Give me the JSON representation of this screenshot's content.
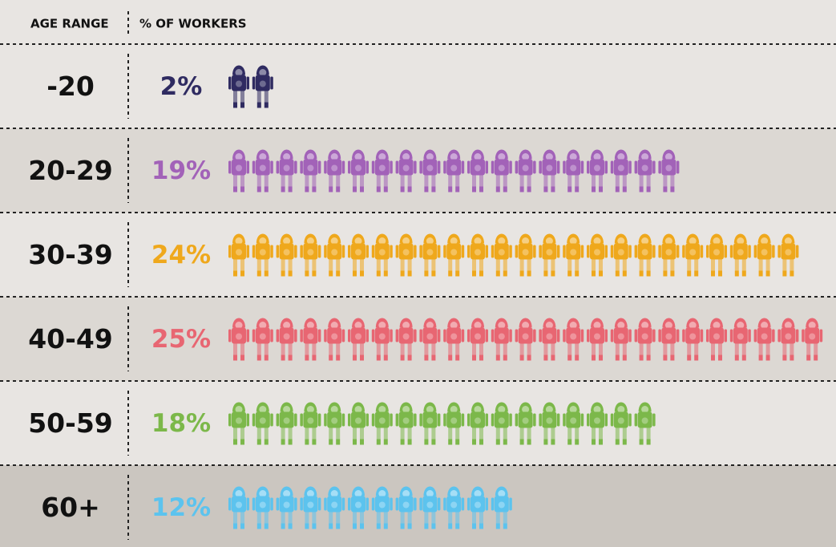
{
  "chart_data": {
    "type": "pictograph",
    "headers": [
      "AGE RANGE",
      "% OF WORKERS"
    ],
    "categories": [
      "-20",
      "20-29",
      "30-39",
      "40-49",
      "50-59",
      "60+"
    ],
    "values": [
      2,
      19,
      24,
      25,
      18,
      12
    ],
    "value_labels": [
      "2%",
      "19%",
      "24%",
      "25%",
      "18%",
      "12%"
    ],
    "colors": [
      "#2f2b61",
      "#a262b8",
      "#efa81c",
      "#e86672",
      "#7cb84a",
      "#5cc3ee"
    ]
  }
}
